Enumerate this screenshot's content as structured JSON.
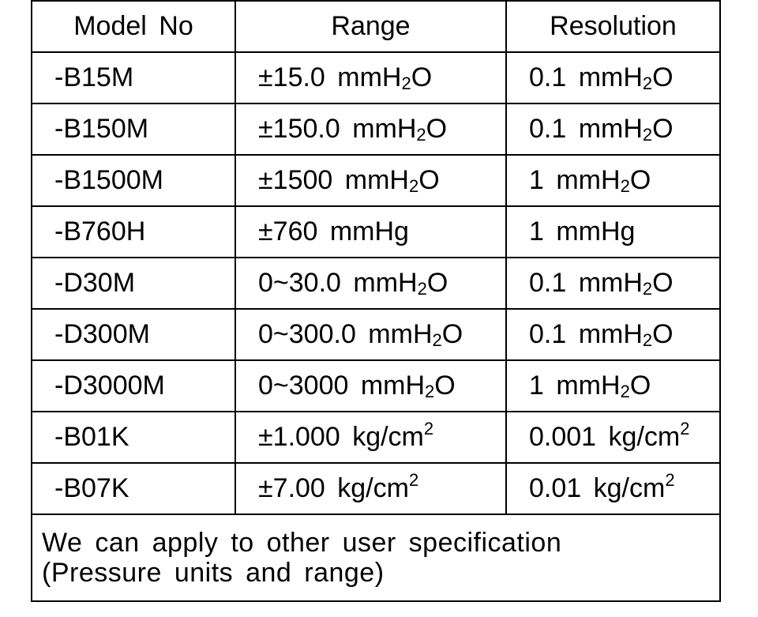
{
  "table": {
    "headers": [
      "Model No",
      "Range",
      "Resolution"
    ],
    "rows": [
      {
        "model": "-B15M",
        "range": "±15.0 mmH<sub>2</sub>O",
        "resolution": "0.1 mmH<sub>2</sub>O"
      },
      {
        "model": "-B150M",
        "range": "±150.0 mmH<sub>2</sub>O",
        "resolution": "0.1 mmH<sub>2</sub>O"
      },
      {
        "model": "-B1500M",
        "range": "±1500 mmH<sub>2</sub>O",
        "resolution": "1 mmH<sub>2</sub>O"
      },
      {
        "model": "-B760H",
        "range": "±760 mmHg",
        "resolution": "1 mmHg"
      },
      {
        "model": "-D30M",
        "range": "0~30.0 mmH<sub>2</sub>O",
        "resolution": "0.1 mmH<sub>2</sub>O"
      },
      {
        "model": "-D300M",
        "range": "0~300.0 mmH<sub>2</sub>O",
        "resolution": "0.1 mmH<sub>2</sub>O"
      },
      {
        "model": "-D3000M",
        "range": "0~3000 mmH<sub>2</sub>O",
        "resolution": "1 mmH<sub>2</sub>O"
      },
      {
        "model": "-B01K",
        "range": "±1.000 kg/cm<sup>2</sup>",
        "resolution": "0.001 kg/cm<sup>2</sup>"
      },
      {
        "model": "-B07K",
        "range": "±7.00 kg/cm<sup>2</sup>",
        "resolution": "0.01 kg/cm<sup>2</sup>"
      }
    ],
    "note_line1": "We can apply to other user specification",
    "note_line2": "(Pressure units and range)"
  }
}
